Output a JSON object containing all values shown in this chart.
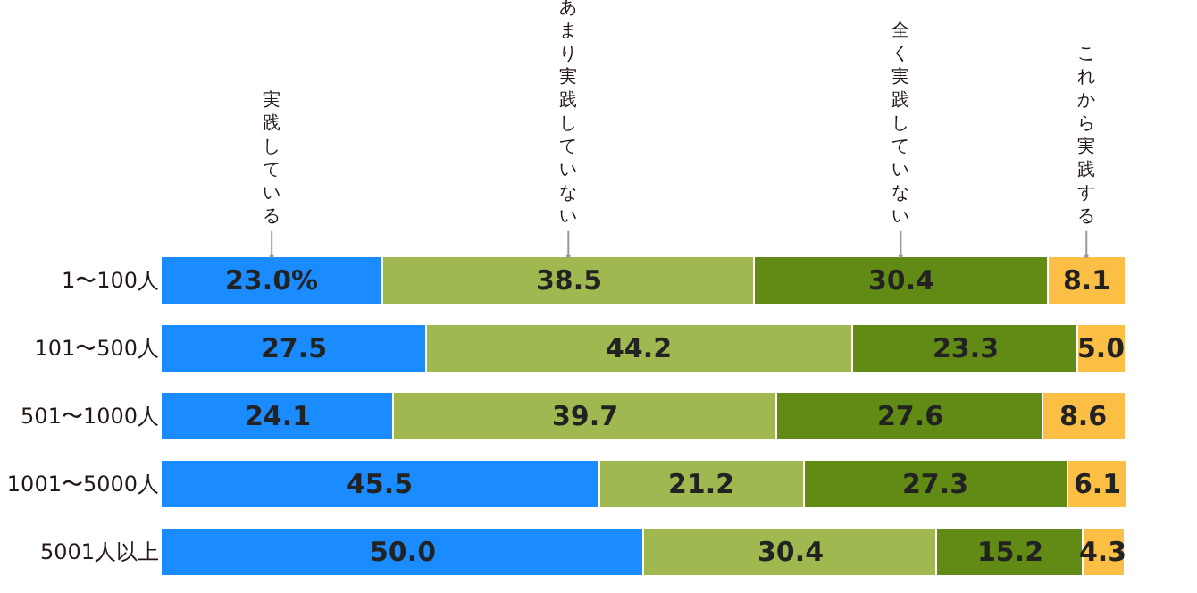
{
  "chart_data": {
    "type": "bar",
    "orientation": "horizontal",
    "stacked": true,
    "categories": [
      "1〜100人",
      "101〜500人",
      "501〜1000人",
      "1001〜5000人",
      "5001人以上"
    ],
    "series": [
      {
        "name": "実践している",
        "color": "#1a8cff",
        "values": [
          23.0,
          27.5,
          24.1,
          45.5,
          50.0
        ],
        "value_labels": [
          "23.0%",
          "27.5",
          "24.1",
          "45.5",
          "50.0"
        ]
      },
      {
        "name": "あまり実践していない",
        "color": "#9fb850",
        "values": [
          38.5,
          44.2,
          39.7,
          21.2,
          30.4
        ],
        "value_labels": [
          "38.5",
          "44.2",
          "39.7",
          "21.2",
          "30.4"
        ]
      },
      {
        "name": "全く実践していない",
        "color": "#618b15",
        "values": [
          30.4,
          23.3,
          27.6,
          27.3,
          15.2
        ],
        "value_labels": [
          "30.4",
          "23.3",
          "27.6",
          "27.3",
          "15.2"
        ]
      },
      {
        "name": "これから実践する",
        "color": "#fbbf45",
        "values": [
          8.1,
          5.0,
          8.6,
          6.1,
          4.3
        ],
        "value_labels": [
          "8.1",
          "5.0",
          "8.6",
          "6.1",
          "4.3"
        ]
      }
    ],
    "xlim": [
      0,
      100
    ],
    "tick_labels": "y",
    "legend": false
  }
}
